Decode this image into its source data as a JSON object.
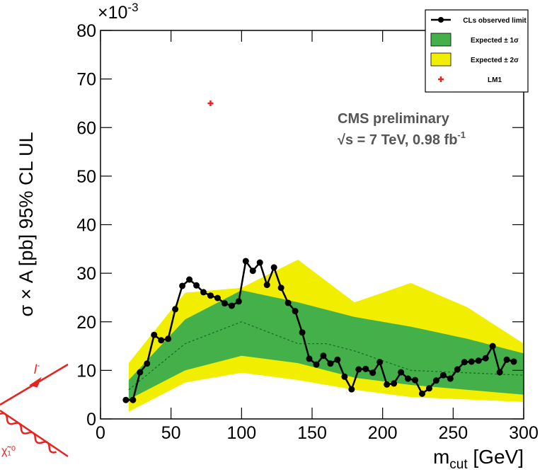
{
  "chart_data": {
    "type": "line",
    "y_label": "σ × A [pb] 95% CL UL",
    "y_multiplier": "×10",
    "y_multiplier_exponent": "-3",
    "x_label": "m",
    "x_label_subscript": "cut",
    "x_label_unit": " [GeV]",
    "annotation_title": "CMS preliminary",
    "annotation_energy": "√s = 7 TeV, 0.98 fb",
    "annotation_energy_exponent": "-1",
    "diagram_labels": [
      "l",
      "-",
      "χ̃₁⁰"
    ],
    "xlim": [
      0,
      300
    ],
    "ylim": [
      0,
      80
    ],
    "xticks": [
      0,
      50,
      100,
      150,
      200,
      250,
      300
    ],
    "yticks": [
      0,
      10,
      20,
      30,
      40,
      50,
      60,
      70,
      80
    ],
    "legend_position": "upper right",
    "series": [
      {
        "name": "CLs observed limit",
        "color": "#000000",
        "x": [
          18,
          23,
          28,
          33,
          38,
          43,
          48,
          53,
          58,
          63,
          68,
          73,
          78,
          83,
          88,
          93,
          98,
          103,
          108,
          113,
          118,
          123,
          128,
          133,
          138,
          143,
          148,
          153,
          158,
          163,
          168,
          173,
          178,
          183,
          188,
          193,
          198,
          203,
          208,
          213,
          218,
          223,
          228,
          233,
          238,
          243,
          248,
          253,
          258,
          263,
          268,
          273,
          278,
          283,
          288,
          293
        ],
        "values": [
          3.9,
          3.9,
          9.6,
          11.4,
          17.3,
          16.2,
          16.5,
          22.6,
          27.4,
          28.7,
          27.5,
          26.1,
          25.4,
          24.9,
          23.8,
          23.3,
          24.2,
          32.5,
          30.5,
          32.2,
          27.6,
          31.2,
          27,
          23.9,
          22.2,
          17.8,
          12.4,
          11.2,
          13,
          11.4,
          12.2,
          8.7,
          6.1,
          10.2,
          10.3,
          9.5,
          11.7,
          7.1,
          7.3,
          9.6,
          8.3,
          8,
          5.2,
          6.3,
          7.9,
          9,
          8.3,
          10.2,
          11.7,
          11.8,
          12,
          12.5,
          15,
          9.6,
          12.2,
          11.8
        ]
      }
    ],
    "bands": [
      {
        "name": "Expected ± 2σ",
        "color": "#f2ee00",
        "x": [
          20,
          60,
          100,
          140,
          180,
          220,
          260,
          300
        ],
        "lower": [
          1.5,
          7.5,
          9.5,
          8,
          6,
          4.5,
          4,
          3.5
        ],
        "upper": [
          11.5,
          26,
          27,
          32.8,
          24,
          28,
          23,
          15.5
        ]
      },
      {
        "name": "Expected ± 1σ",
        "color": "#44b049",
        "x": [
          20,
          60,
          100,
          140,
          180,
          220,
          260,
          300
        ],
        "lower": [
          4,
          10,
          13,
          11.5,
          8.5,
          7,
          6,
          5
        ],
        "upper": [
          8,
          20.5,
          26.5,
          24,
          21,
          19,
          16.5,
          13.5
        ]
      }
    ],
    "expected_median": {
      "color": "#1a6e2a",
      "x": [
        20,
        60,
        100,
        140,
        160,
        180,
        220,
        260,
        300
      ],
      "values": [
        6,
        15.5,
        20,
        15.5,
        15.5,
        14,
        10,
        9.5,
        9
      ]
    },
    "markers": [
      {
        "name": "LM1",
        "color": "#e8221e",
        "x": 78,
        "y": 65
      }
    ]
  }
}
